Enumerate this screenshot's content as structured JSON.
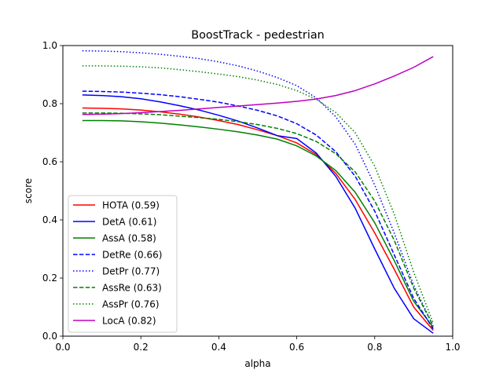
{
  "chart_data": {
    "type": "line",
    "title": "BoostTrack - pedestrian",
    "xlabel": "alpha",
    "ylabel": "score",
    "xlim": [
      0.0,
      1.0
    ],
    "ylim": [
      0.0,
      1.0
    ],
    "xticks": [
      "0.0",
      "0.2",
      "0.4",
      "0.6",
      "0.8",
      "1.0"
    ],
    "yticks": [
      "0.0",
      "0.2",
      "0.4",
      "0.6",
      "0.8",
      "1.0"
    ],
    "grid": false,
    "legend_position": "lower-left",
    "x": [
      0.05,
      0.1,
      0.15,
      0.2,
      0.25,
      0.3,
      0.35,
      0.4,
      0.45,
      0.5,
      0.55,
      0.6,
      0.65,
      0.7,
      0.75,
      0.8,
      0.85,
      0.9,
      0.95
    ],
    "series": [
      {
        "name": "HOTA (0.59)",
        "color": "#ff0000",
        "dash": "solid",
        "values": [
          0.785,
          0.784,
          0.782,
          0.778,
          0.772,
          0.764,
          0.754,
          0.742,
          0.728,
          0.71,
          0.69,
          0.665,
          0.625,
          0.56,
          0.47,
          0.355,
          0.23,
          0.1,
          0.02
        ]
      },
      {
        "name": "DetA (0.61)",
        "color": "#0000ff",
        "dash": "solid",
        "values": [
          0.83,
          0.828,
          0.824,
          0.817,
          0.806,
          0.793,
          0.778,
          0.76,
          0.74,
          0.716,
          0.69,
          0.68,
          0.63,
          0.55,
          0.44,
          0.3,
          0.165,
          0.06,
          0.01
        ]
      },
      {
        "name": "AssA (0.58)",
        "color": "#008000",
        "dash": "solid",
        "values": [
          0.742,
          0.742,
          0.741,
          0.738,
          0.733,
          0.727,
          0.72,
          0.712,
          0.703,
          0.692,
          0.678,
          0.655,
          0.62,
          0.57,
          0.495,
          0.39,
          0.26,
          0.12,
          0.03
        ]
      },
      {
        "name": "DetRe (0.66)",
        "color": "#0000ff",
        "dash": "dashed",
        "values": [
          0.843,
          0.842,
          0.84,
          0.836,
          0.831,
          0.824,
          0.815,
          0.805,
          0.792,
          0.777,
          0.758,
          0.731,
          0.692,
          0.635,
          0.55,
          0.43,
          0.28,
          0.13,
          0.025
        ]
      },
      {
        "name": "DetPr (0.77)",
        "color": "#0000ff",
        "dash": "dotted",
        "values": [
          0.982,
          0.981,
          0.979,
          0.975,
          0.97,
          0.963,
          0.955,
          0.944,
          0.93,
          0.912,
          0.89,
          0.862,
          0.82,
          0.755,
          0.66,
          0.52,
          0.355,
          0.175,
          0.035
        ]
      },
      {
        "name": "AssRe (0.63)",
        "color": "#008000",
        "dash": "dashed",
        "values": [
          0.768,
          0.768,
          0.767,
          0.765,
          0.762,
          0.757,
          0.752,
          0.746,
          0.738,
          0.728,
          0.715,
          0.697,
          0.67,
          0.628,
          0.565,
          0.465,
          0.33,
          0.165,
          0.035
        ]
      },
      {
        "name": "AssPr (0.76)",
        "color": "#008000",
        "dash": "dotted",
        "values": [
          0.93,
          0.93,
          0.929,
          0.927,
          0.923,
          0.917,
          0.91,
          0.902,
          0.893,
          0.881,
          0.866,
          0.845,
          0.815,
          0.77,
          0.7,
          0.585,
          0.42,
          0.22,
          0.045
        ]
      },
      {
        "name": "LocA (0.82)",
        "color": "#bf00bf",
        "dash": "solid",
        "values": [
          0.763,
          0.764,
          0.766,
          0.769,
          0.773,
          0.777,
          0.782,
          0.787,
          0.792,
          0.797,
          0.802,
          0.808,
          0.816,
          0.828,
          0.845,
          0.868,
          0.895,
          0.925,
          0.962
        ]
      }
    ]
  }
}
